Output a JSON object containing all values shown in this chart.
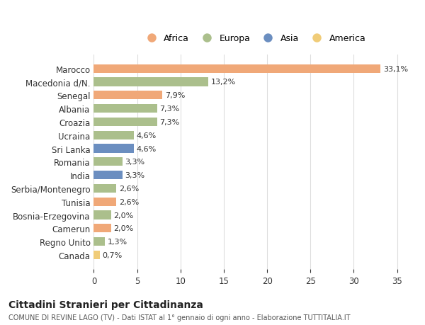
{
  "categories": [
    "Marocco",
    "Macedonia d/N.",
    "Senegal",
    "Albania",
    "Croazia",
    "Ucraina",
    "Sri Lanka",
    "Romania",
    "India",
    "Serbia/Montenegro",
    "Tunisia",
    "Bosnia-Erzegovina",
    "Camerun",
    "Regno Unito",
    "Canada"
  ],
  "values": [
    33.1,
    13.2,
    7.9,
    7.3,
    7.3,
    4.6,
    4.6,
    3.3,
    3.3,
    2.6,
    2.6,
    2.0,
    2.0,
    1.3,
    0.7
  ],
  "labels": [
    "33,1%",
    "13,2%",
    "7,9%",
    "7,3%",
    "7,3%",
    "4,6%",
    "4,6%",
    "3,3%",
    "3,3%",
    "2,6%",
    "2,6%",
    "2,0%",
    "2,0%",
    "1,3%",
    "0,7%"
  ],
  "continents": [
    "Africa",
    "Europa",
    "Africa",
    "Europa",
    "Europa",
    "Europa",
    "Asia",
    "Europa",
    "Asia",
    "Europa",
    "Africa",
    "Europa",
    "Africa",
    "Europa",
    "America"
  ],
  "colors": {
    "Africa": "#F0A878",
    "Europa": "#ABBF8C",
    "Asia": "#6B8EC0",
    "America": "#F0CC78"
  },
  "legend_order": [
    "Africa",
    "Europa",
    "Asia",
    "America"
  ],
  "legend_colors": [
    "#F0A878",
    "#ABBF8C",
    "#6B8EC0",
    "#F0CC78"
  ],
  "xlim": [
    0,
    37
  ],
  "xticks": [
    0,
    5,
    10,
    15,
    20,
    25,
    30,
    35
  ],
  "title": "Cittadini Stranieri per Cittadinanza",
  "subtitle": "COMUNE DI REVINE LAGO (TV) - Dati ISTAT al 1° gennaio di ogni anno - Elaborazione TUTTITALIA.IT",
  "bg_color": "#ffffff",
  "grid_color": "#dddddd",
  "bar_height": 0.65
}
